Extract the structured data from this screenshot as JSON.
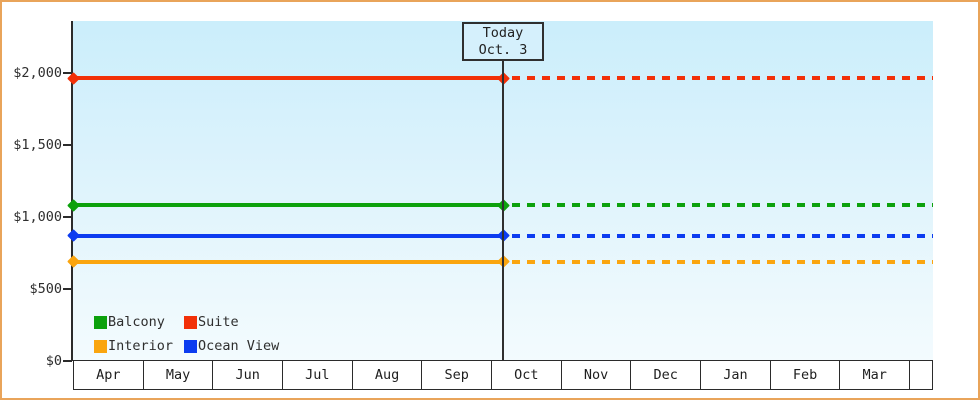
{
  "chart_data": {
    "type": "line",
    "title": "",
    "description": "Cabin price by category over 12 months; horizontal price lines are solid up to today's date and dashed (projected) afterwards",
    "x_categories": [
      "Apr",
      "May",
      "Jun",
      "Jul",
      "Aug",
      "Sep",
      "Oct",
      "Nov",
      "Dec",
      "Jan",
      "Feb",
      "Mar"
    ],
    "y_axis": {
      "range": [
        0,
        2000
      ],
      "ticks": [
        {
          "label": "$0",
          "value": 0
        },
        {
          "label": "$500",
          "value": 500
        },
        {
          "label": "$1,000",
          "value": 1000
        },
        {
          "label": "$1,500",
          "value": 1500
        },
        {
          "label": "$2,000",
          "value": 2000
        }
      ]
    },
    "today": {
      "title": "Today",
      "date": "Oct. 3",
      "x_month": "Oct",
      "x_day": 3
    },
    "series": [
      {
        "name": "Balcony",
        "color": "#0ca10c",
        "value": 1080,
        "line_before_today": "solid",
        "line_after_today": "dashed"
      },
      {
        "name": "Suite",
        "color": "#f23008",
        "value": 1960,
        "line_before_today": "solid",
        "line_after_today": "dashed"
      },
      {
        "name": "Interior",
        "color": "#faa50f",
        "value": 690,
        "line_before_today": "solid",
        "line_after_today": "dashed"
      },
      {
        "name": "Ocean View",
        "color": "#0c3cf0",
        "value": 870,
        "line_before_today": "solid",
        "line_after_today": "dashed"
      }
    ],
    "legend": {
      "position": "bottom-left",
      "entries": [
        "Balcony",
        "Suite",
        "Interior",
        "Ocean View"
      ]
    },
    "grid": "off",
    "style": {
      "plot_bg_top": "#cbeefb",
      "plot_bg_bottom": "#f3fbfe",
      "axis_color": "#2b2b2b",
      "frame_border_color": "#e9a45a",
      "month_cell_bg": "#ffffff"
    }
  }
}
